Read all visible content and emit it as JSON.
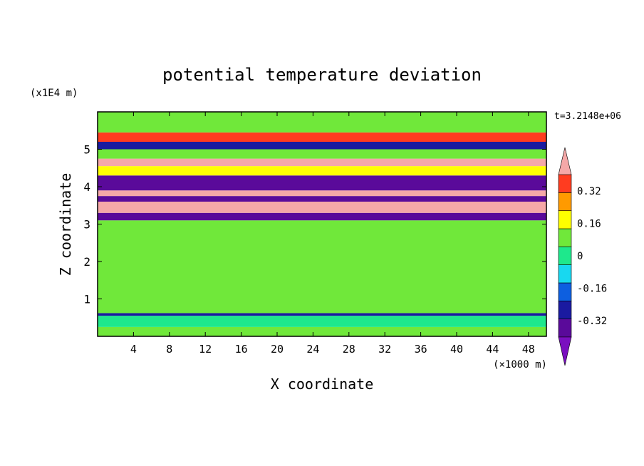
{
  "chart_data": {
    "type": "heatmap",
    "title": "potential temperature deviation",
    "xlabel": "X coordinate",
    "ylabel": "Z coordinate",
    "x_unit": "(×1000 m)",
    "y_unit": "(x1E4 m)",
    "time_label": "t=3.2148e+06",
    "xlim": [
      0,
      50
    ],
    "ylim": [
      0,
      6
    ],
    "x_ticks": [
      4,
      8,
      12,
      16,
      20,
      24,
      28,
      32,
      36,
      40,
      44,
      48
    ],
    "y_ticks": [
      1,
      2,
      3,
      4,
      5
    ],
    "colorbar": {
      "levels": [
        -0.4,
        -0.32,
        -0.24,
        -0.16,
        -0.08,
        0,
        0.08,
        0.16,
        0.24,
        0.32,
        0.4
      ],
      "tick_labels": [
        "0.32",
        "0.16",
        "0",
        "-0.16",
        "-0.32"
      ],
      "tick_values": [
        0.32,
        0.16,
        0,
        -0.16,
        -0.32
      ],
      "colors": [
        "#7a0fbf",
        "#5a0a9a",
        "#1a1aa0",
        "#0d5fe0",
        "#18d8f0",
        "#1ee88c",
        "#70e83a",
        "#ffff00",
        "#ff9a00",
        "#ff3c20",
        "#f5a8a8"
      ]
    },
    "bands": [
      {
        "z0": 0.0,
        "z1": 0.25,
        "level": 0.04
      },
      {
        "z0": 0.25,
        "z1": 0.55,
        "level": -0.02
      },
      {
        "z0": 0.55,
        "z1": 0.62,
        "level": -0.28
      },
      {
        "z0": 0.62,
        "z1": 1.6,
        "level": 0.05
      },
      {
        "z0": 1.6,
        "z1": 3.1,
        "level": 0.02
      },
      {
        "z0": 3.1,
        "z1": 3.3,
        "level": -0.36
      },
      {
        "z0": 3.3,
        "z1": 3.6,
        "level": 0.4
      },
      {
        "z0": 3.6,
        "z1": 3.75,
        "level": -0.36
      },
      {
        "z0": 3.75,
        "z1": 3.9,
        "level": 0.4
      },
      {
        "z0": 3.9,
        "z1": 4.3,
        "level": -0.34
      },
      {
        "z0": 4.3,
        "z1": 4.55,
        "level": 0.12
      },
      {
        "z0": 4.55,
        "z1": 4.75,
        "level": 0.36
      },
      {
        "z0": 4.75,
        "z1": 5.0,
        "level": 0.06
      },
      {
        "z0": 5.0,
        "z1": 5.2,
        "level": -0.26
      },
      {
        "z0": 5.2,
        "z1": 5.45,
        "level": 0.28
      },
      {
        "z0": 5.45,
        "z1": 6.0,
        "level": 0.02
      }
    ]
  }
}
